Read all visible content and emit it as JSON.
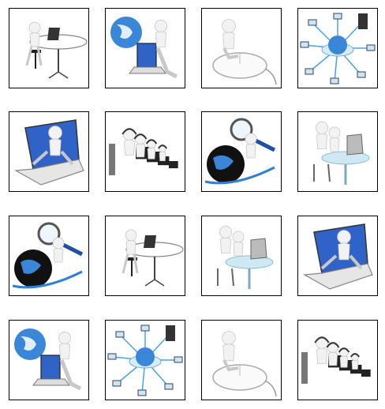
{
  "gallery": {
    "rows": 4,
    "columns": 4,
    "tiles": [
      {
        "scene": "figure-at-desk-laptop"
      },
      {
        "scene": "globe-figure-laptop"
      },
      {
        "scene": "thinking-figure-on-mouse"
      },
      {
        "scene": "network-hub-globe"
      },
      {
        "scene": "figure-emerging-from-laptop"
      },
      {
        "scene": "headset-operators-row"
      },
      {
        "scene": "globe-magnifier-figure"
      },
      {
        "scene": "two-figures-at-table"
      },
      {
        "scene": "globe-magnifier-figure"
      },
      {
        "scene": "figure-at-desk-laptop"
      },
      {
        "scene": "two-figures-at-table"
      },
      {
        "scene": "figure-emerging-from-laptop"
      },
      {
        "scene": "globe-figure-laptop"
      },
      {
        "scene": "network-hub-globe"
      },
      {
        "scene": "thinking-figure-on-mouse"
      },
      {
        "scene": "headset-operators-row"
      }
    ]
  },
  "colors": {
    "border": "#000000",
    "figure": "#f2f2f2",
    "figure_shade": "#c8c8c8",
    "screen_blue": "#2f63c8",
    "globe_blue": "#3a86d8",
    "dark": "#333333"
  }
}
